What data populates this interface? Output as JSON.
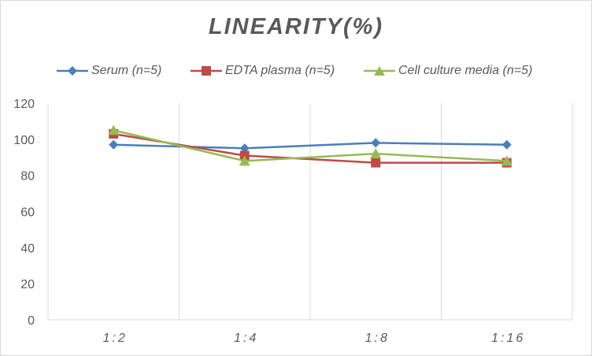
{
  "chart_data": {
    "type": "line",
    "title": "LINEARITY(%)",
    "xlabel": "",
    "ylabel": "",
    "categories": [
      "1:2",
      "1:4",
      "1:8",
      "1:16"
    ],
    "ylim": [
      0,
      120
    ],
    "yticks": [
      0,
      20,
      40,
      60,
      80,
      100,
      120
    ],
    "grid": "vertical",
    "legend_position": "top",
    "series": [
      {
        "name": "Serum (n=5)",
        "values": [
          97,
          95,
          98,
          97
        ],
        "color": "#4a7ebb",
        "marker": "diamond"
      },
      {
        "name": "EDTA plasma (n=5)",
        "values": [
          103,
          91,
          87,
          87
        ],
        "color": "#be4b48",
        "marker": "square"
      },
      {
        "name": "Cell culture media (n=5)",
        "values": [
          105,
          88,
          92,
          88
        ],
        "color": "#98b954",
        "marker": "triangle"
      }
    ]
  }
}
